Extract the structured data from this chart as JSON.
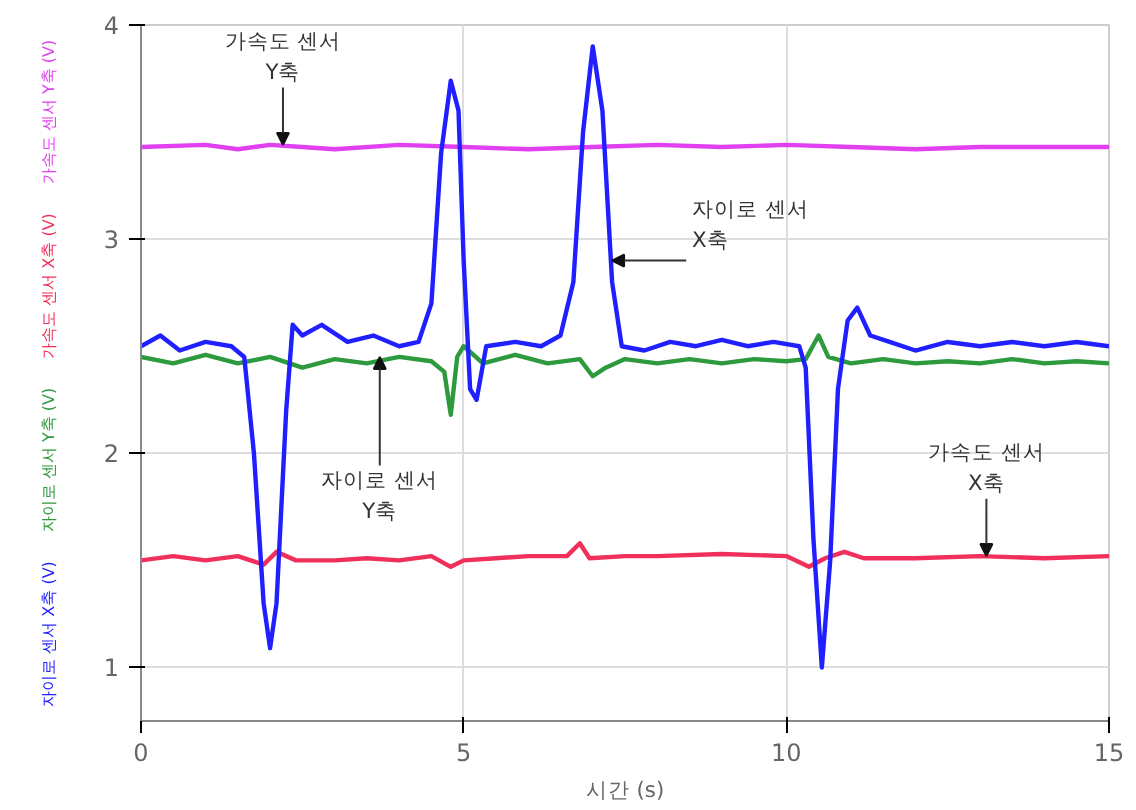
{
  "chart_data": {
    "type": "line",
    "xlabel": "시간 (s)",
    "xlim": [
      0,
      15
    ],
    "ylim": [
      0.75,
      4
    ],
    "xticks": [
      0,
      5,
      10,
      15
    ],
    "yticks": [
      1,
      2,
      3,
      4
    ],
    "grid": true,
    "marker": "none",
    "line_style": "solid",
    "series": [
      {
        "name": "가속도 센서 Y축 (V)",
        "color": "#e040f0",
        "x": [
          0,
          1,
          1.5,
          2,
          2.5,
          3,
          4,
          5,
          6,
          7,
          8,
          9,
          10,
          11,
          12,
          13,
          14,
          15
        ],
        "values": [
          3.43,
          3.44,
          3.42,
          3.44,
          3.43,
          3.42,
          3.44,
          3.43,
          3.42,
          3.43,
          3.44,
          3.43,
          3.44,
          3.43,
          3.42,
          3.43,
          3.43,
          3.43
        ]
      },
      {
        "name": "가속도 센서 X축 (V)",
        "color": "#f0305a",
        "x": [
          0,
          0.5,
          1,
          1.5,
          1.9,
          2.1,
          2.4,
          3,
          3.5,
          4,
          4.5,
          4.8,
          5,
          5.5,
          6,
          6.6,
          6.8,
          6.95,
          7.5,
          8,
          9,
          10,
          10.35,
          10.6,
          10.9,
          11.2,
          12,
          13,
          14,
          15
        ],
        "values": [
          1.5,
          1.52,
          1.5,
          1.52,
          1.48,
          1.54,
          1.5,
          1.5,
          1.51,
          1.5,
          1.52,
          1.47,
          1.5,
          1.51,
          1.52,
          1.52,
          1.58,
          1.51,
          1.52,
          1.52,
          1.53,
          1.52,
          1.47,
          1.51,
          1.54,
          1.51,
          1.51,
          1.52,
          1.51,
          1.52
        ]
      },
      {
        "name": "자이로 센서 Y축 (V)",
        "color": "#2e9a3e",
        "x": [
          0,
          0.5,
          1,
          1.5,
          2,
          2.5,
          3,
          3.5,
          4,
          4.5,
          4.7,
          4.8,
          4.9,
          5,
          5.3,
          5.8,
          6.3,
          6.8,
          7,
          7.2,
          7.5,
          8,
          8.5,
          9,
          9.5,
          10,
          10.3,
          10.5,
          10.65,
          11,
          11.5,
          12,
          12.5,
          13,
          13.5,
          14,
          14.5,
          15
        ],
        "values": [
          2.45,
          2.42,
          2.46,
          2.42,
          2.45,
          2.4,
          2.44,
          2.42,
          2.45,
          2.43,
          2.38,
          2.18,
          2.45,
          2.5,
          2.42,
          2.46,
          2.42,
          2.44,
          2.36,
          2.4,
          2.44,
          2.42,
          2.44,
          2.42,
          2.44,
          2.43,
          2.44,
          2.55,
          2.45,
          2.42,
          2.44,
          2.42,
          2.43,
          2.42,
          2.44,
          2.42,
          2.43,
          2.42
        ]
      },
      {
        "name": "자이로 센서 X축 (V)",
        "color": "#1f1fff",
        "x": [
          0,
          0.3,
          0.6,
          1,
          1.4,
          1.6,
          1.75,
          1.9,
          2,
          2.1,
          2.25,
          2.35,
          2.5,
          2.8,
          3.2,
          3.6,
          4,
          4.3,
          4.5,
          4.65,
          4.8,
          4.92,
          5,
          5.1,
          5.2,
          5.35,
          5.8,
          6.2,
          6.5,
          6.7,
          6.85,
          7,
          7.15,
          7.3,
          7.45,
          7.8,
          8.2,
          8.6,
          9,
          9.4,
          9.8,
          10.2,
          10.3,
          10.42,
          10.55,
          10.68,
          10.8,
          10.95,
          11.1,
          11.3,
          11.6,
          12,
          12.5,
          13,
          13.5,
          14,
          14.5,
          15
        ],
        "values": [
          2.5,
          2.55,
          2.48,
          2.52,
          2.5,
          2.45,
          2,
          1.3,
          1.09,
          1.3,
          2.2,
          2.6,
          2.55,
          2.6,
          2.52,
          2.55,
          2.5,
          2.52,
          2.7,
          3.4,
          3.74,
          3.6,
          2.9,
          2.3,
          2.25,
          2.5,
          2.52,
          2.5,
          2.55,
          2.8,
          3.5,
          3.9,
          3.6,
          2.8,
          2.5,
          2.48,
          2.52,
          2.5,
          2.53,
          2.5,
          2.52,
          2.5,
          2.4,
          1.6,
          1,
          1.5,
          2.3,
          2.62,
          2.68,
          2.55,
          2.52,
          2.48,
          2.52,
          2.5,
          2.52,
          2.5,
          2.52,
          2.5
        ]
      }
    ],
    "annotations": [
      {
        "text": "가속도 센서\nY축",
        "x": 2.2,
        "y": 3.44
      },
      {
        "text": "자이로 센서\nX축",
        "x": 7.3,
        "y": 2.9
      },
      {
        "text": "자이로 센서\nY축",
        "x": 3.7,
        "y": 2.45
      },
      {
        "text": "가속도 센서\nX축",
        "x": 13.1,
        "y": 1.52
      }
    ]
  }
}
